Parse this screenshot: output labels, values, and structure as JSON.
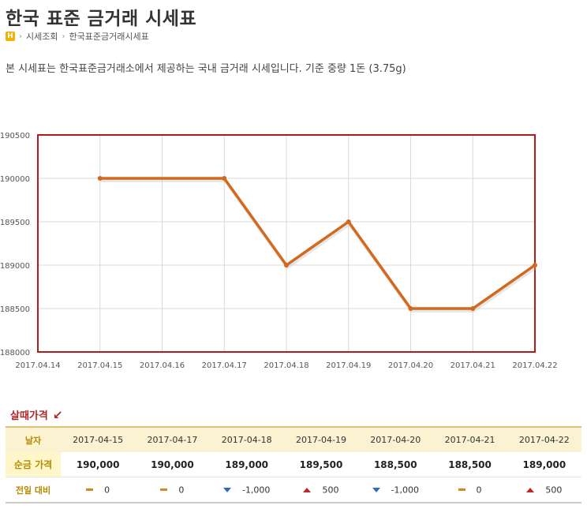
{
  "page": {
    "title": "한국 표준 금거래 시세표",
    "breadcrumb": {
      "home_icon": "H",
      "items": [
        "시세조회",
        "한국표준금거래시세표"
      ]
    },
    "description": "본 시세표는 한국표준금거래소에서 제공하는 국내 금거래 시세입니다. 기준 중량 1돈 (3.75g)"
  },
  "chart_data": {
    "type": "line",
    "x_ticks": [
      "2017.04.14",
      "2017.04.15",
      "2017.04.16",
      "2017.04.17",
      "2017.04.18",
      "2017.04.19",
      "2017.04.20",
      "2017.04.21",
      "2017.04.22"
    ],
    "y_ticks": [
      "190500",
      "190000",
      "189500",
      "189000",
      "188500",
      "188000"
    ],
    "ylim": [
      188000,
      190500
    ],
    "series": [
      {
        "points": [
          {
            "x": "2017.04.15",
            "y": 190000
          },
          {
            "x": "2017.04.17",
            "y": 190000
          },
          {
            "x": "2017.04.18",
            "y": 189000
          },
          {
            "x": "2017.04.19",
            "y": 189500
          },
          {
            "x": "2017.04.20",
            "y": 188500
          },
          {
            "x": "2017.04.21",
            "y": 188500
          },
          {
            "x": "2017.04.22",
            "y": 189000
          }
        ]
      }
    ],
    "grid": true,
    "colors": {
      "line": "#d2691e",
      "frame": "#b01b1b",
      "grid": "#d9d9d9"
    }
  },
  "table": {
    "section_title": "살때가격",
    "section_icon": "↙",
    "header_label": "날자",
    "dates": [
      "2017-04-15",
      "2017-04-17",
      "2017-04-18",
      "2017-04-19",
      "2017-04-20",
      "2017-04-21",
      "2017-04-22"
    ],
    "price_label": "순금 가격",
    "prices": [
      "190,000",
      "190,000",
      "189,000",
      "189,500",
      "188,500",
      "188,500",
      "189,000"
    ],
    "diff_label": "전일 대비",
    "diffs": [
      {
        "dir": "flat",
        "value": "0"
      },
      {
        "dir": "flat",
        "value": "0"
      },
      {
        "dir": "down",
        "value": "-1,000"
      },
      {
        "dir": "up",
        "value": "500"
      },
      {
        "dir": "down",
        "value": "-1,000"
      },
      {
        "dir": "flat",
        "value": "0"
      },
      {
        "dir": "up",
        "value": "500"
      }
    ]
  }
}
